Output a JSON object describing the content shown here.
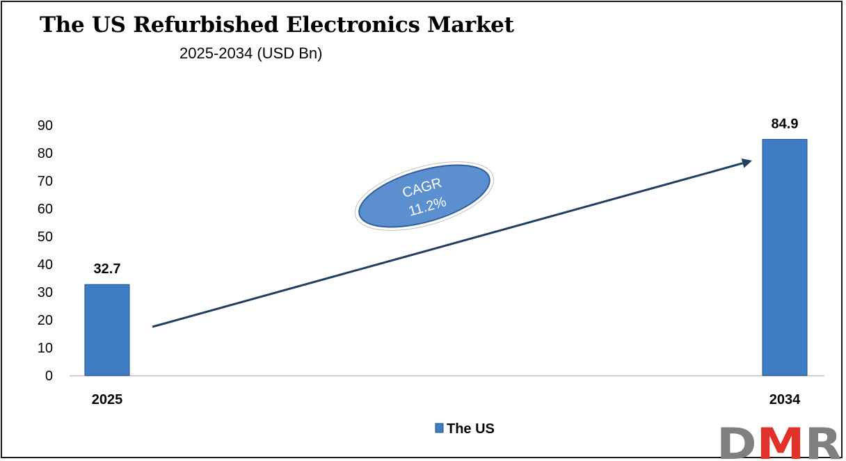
{
  "chart_data": {
    "type": "bar",
    "title": "The US Refurbished Electronics Market",
    "subtitle": "2025-2034 (USD Bn)",
    "categories": [
      "2025",
      "2034"
    ],
    "series": [
      {
        "name": "The US",
        "values": [
          32.7,
          84.9
        ]
      }
    ],
    "data_labels": [
      "32.7",
      "84.9"
    ],
    "y_ticks": [
      0,
      10,
      20,
      30,
      40,
      50,
      60,
      70,
      80,
      90
    ],
    "ylim": [
      0,
      90
    ],
    "xlabel": "",
    "ylabel": "",
    "grid": false,
    "legend": {
      "position": "bottom-center",
      "entries": [
        "The US"
      ]
    },
    "annotation": {
      "line1": "CAGR",
      "line2": "11.2%"
    }
  },
  "colors": {
    "bar": "#3e7cc4",
    "bar_edge": "#1f4f8a",
    "arrow": "#1f3f5f",
    "bubble": "#5b8fcf",
    "logo_gray": "#7f7f7f",
    "logo_red": "#e0312b"
  },
  "logo": {
    "text": "DMR"
  }
}
